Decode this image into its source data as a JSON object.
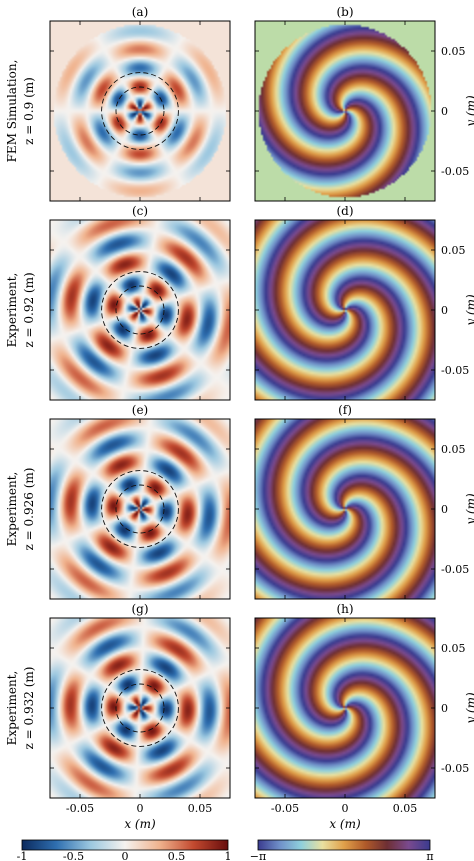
{
  "chart_data": {
    "type": "heatmap",
    "panels": [
      {
        "label": "(a)",
        "kind": "amplitude",
        "row": 0,
        "col": 0,
        "n": 3,
        "rot": -1.5708,
        "pattern": "sim"
      },
      {
        "label": "(b)",
        "kind": "phase",
        "row": 0,
        "col": 1,
        "n": 3,
        "rot": -1.5708,
        "pattern": "sim"
      },
      {
        "label": "(c)",
        "kind": "amplitude",
        "row": 1,
        "col": 0,
        "n": 3,
        "rot": 0.6,
        "pattern": "exp"
      },
      {
        "label": "(d)",
        "kind": "phase",
        "row": 1,
        "col": 1,
        "n": 3,
        "rot": 0.6,
        "pattern": "exp"
      },
      {
        "label": "(e)",
        "kind": "amplitude",
        "row": 2,
        "col": 0,
        "n": 3,
        "rot": 0.35,
        "pattern": "exp"
      },
      {
        "label": "(f)",
        "kind": "phase",
        "row": 2,
        "col": 1,
        "n": 3,
        "rot": 0.35,
        "pattern": "exp"
      },
      {
        "label": "(g)",
        "kind": "amplitude",
        "row": 3,
        "col": 0,
        "n": 3,
        "rot": 0.15,
        "pattern": "exp"
      },
      {
        "label": "(h)",
        "kind": "phase",
        "row": 3,
        "col": 1,
        "n": 3,
        "rot": 0.15,
        "pattern": "exp"
      }
    ],
    "row_labels": [
      {
        "line1": "FEM Simulation,",
        "line2": "z = 0.9 (m)"
      },
      {
        "line1": "Experiment,",
        "line2": "z = 0.92 (m)"
      },
      {
        "line1": "Experiment,",
        "line2": "z = 0.926 (m)"
      },
      {
        "line1": "Experiment,",
        "line2": "z = 0.932 (m)"
      }
    ],
    "x_axis": {
      "label": "x (m)",
      "ticks": [
        -0.05,
        0,
        0.05
      ],
      "tick_labels": [
        "-0.05",
        "0",
        "0.05"
      ],
      "range": [
        -0.075,
        0.075
      ]
    },
    "y_axis": {
      "label": "y (m)",
      "ticks": [
        0.05,
        0,
        -0.05
      ],
      "tick_labels": [
        "0.05",
        "0",
        "-0.05"
      ],
      "range": [
        -0.075,
        0.075
      ]
    },
    "dashed_circles_radius_m": [
      0.02,
      0.032
    ],
    "colorbars": [
      {
        "name": "amplitude",
        "range": [
          -1,
          1
        ],
        "tick_labels": [
          "-1",
          "-0.5",
          "0",
          "0.5",
          "1"
        ],
        "colors": [
          "#0b2a5e",
          "#2f6fb0",
          "#9cc8e0",
          "#f5f2ef",
          "#f0b38e",
          "#c2492f",
          "#670d0d"
        ]
      },
      {
        "name": "phase",
        "range": [
          -3.14159,
          3.14159
        ],
        "tick_labels": [
          "−π",
          "π"
        ],
        "colors": [
          "#3a3b8f",
          "#6f8fc8",
          "#8fd0dc",
          "#e8e0a0",
          "#e0a04a",
          "#b05a2a",
          "#6e2f34",
          "#7a4a8e",
          "#3a3b8f"
        ]
      }
    ],
    "sim_background_phase": "#bcdca8"
  }
}
